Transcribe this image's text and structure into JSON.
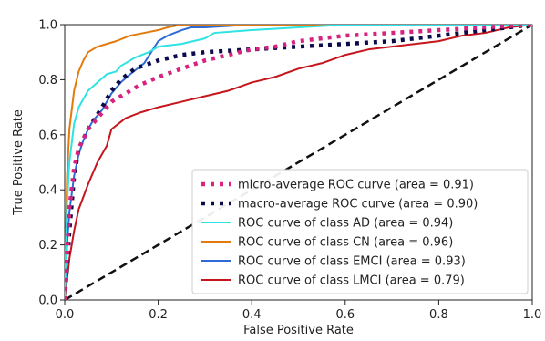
{
  "chart_data": {
    "type": "line",
    "xlabel": "False Positive Rate",
    "ylabel": "True Positive Rate",
    "xlim": [
      0.0,
      1.0
    ],
    "ylim": [
      0.0,
      1.0
    ],
    "xticks": [
      "0.0",
      "0.2",
      "0.4",
      "0.6",
      "0.8",
      "1.0"
    ],
    "yticks": [
      "0.0",
      "0.2",
      "0.4",
      "0.6",
      "0.8",
      "1.0"
    ],
    "grid": false,
    "legend_position": "lower-right",
    "series": [
      {
        "name": "micro-average ROC curve (area = 0.91)",
        "color": "#d6237f",
        "style": "dotted",
        "x": [
          0.0,
          0.01,
          0.02,
          0.03,
          0.05,
          0.08,
          0.1,
          0.13,
          0.16,
          0.2,
          0.25,
          0.3,
          0.35,
          0.4,
          0.45,
          0.5,
          0.55,
          0.6,
          0.7,
          0.8,
          0.9,
          1.0
        ],
        "y": [
          0.0,
          0.33,
          0.48,
          0.55,
          0.62,
          0.68,
          0.72,
          0.75,
          0.78,
          0.81,
          0.84,
          0.87,
          0.89,
          0.91,
          0.92,
          0.94,
          0.95,
          0.96,
          0.97,
          0.98,
          0.99,
          1.0
        ]
      },
      {
        "name": "macro-average ROC curve (area = 0.90)",
        "color": "#0b0b4a",
        "style": "dotted",
        "x": [
          0.0,
          0.01,
          0.02,
          0.03,
          0.05,
          0.08,
          0.1,
          0.12,
          0.15,
          0.2,
          0.25,
          0.3,
          0.4,
          0.5,
          0.6,
          0.7,
          0.8,
          0.9,
          1.0
        ],
        "y": [
          0.0,
          0.25,
          0.45,
          0.55,
          0.62,
          0.7,
          0.76,
          0.8,
          0.84,
          0.87,
          0.89,
          0.9,
          0.91,
          0.92,
          0.93,
          0.94,
          0.96,
          0.98,
          1.0
        ]
      },
      {
        "name": "ROC curve of class AD (area = 0.94)",
        "color": "#2de3e3",
        "style": "solid",
        "x": [
          0.0,
          0.005,
          0.01,
          0.02,
          0.03,
          0.04,
          0.05,
          0.07,
          0.09,
          0.11,
          0.12,
          0.15,
          0.18,
          0.2,
          0.25,
          0.3,
          0.32,
          0.4,
          0.5,
          0.6,
          0.8,
          1.0
        ],
        "y": [
          0.0,
          0.35,
          0.5,
          0.64,
          0.7,
          0.73,
          0.76,
          0.79,
          0.82,
          0.83,
          0.85,
          0.88,
          0.9,
          0.92,
          0.93,
          0.95,
          0.97,
          0.98,
          0.99,
          1.0,
          1.0,
          1.0
        ]
      },
      {
        "name": "ROC curve of class CN (area = 0.96)",
        "color": "#e37a0c",
        "style": "solid",
        "x": [
          0.0,
          0.005,
          0.01,
          0.02,
          0.03,
          0.04,
          0.05,
          0.07,
          0.09,
          0.11,
          0.14,
          0.17,
          0.2,
          0.22,
          0.25,
          0.3,
          0.4,
          0.6,
          1.0
        ],
        "y": [
          0.0,
          0.45,
          0.62,
          0.76,
          0.83,
          0.87,
          0.9,
          0.92,
          0.93,
          0.94,
          0.96,
          0.97,
          0.98,
          0.99,
          1.0,
          1.0,
          1.0,
          1.0,
          1.0
        ]
      },
      {
        "name": "ROC curve of class EMCI (area = 0.93)",
        "color": "#2e6bd6",
        "style": "solid",
        "x": [
          0.0,
          0.005,
          0.01,
          0.02,
          0.03,
          0.04,
          0.05,
          0.06,
          0.08,
          0.1,
          0.12,
          0.14,
          0.17,
          0.2,
          0.22,
          0.25,
          0.27,
          0.3,
          0.4,
          0.6,
          1.0
        ],
        "y": [
          0.0,
          0.2,
          0.32,
          0.45,
          0.53,
          0.58,
          0.62,
          0.65,
          0.69,
          0.75,
          0.79,
          0.82,
          0.86,
          0.94,
          0.96,
          0.98,
          0.99,
          0.99,
          1.0,
          1.0,
          1.0
        ]
      },
      {
        "name": "ROC curve of class LMCI (area = 0.79)",
        "color": "#c4161c",
        "style": "solid",
        "x": [
          0.0,
          0.01,
          0.02,
          0.03,
          0.05,
          0.07,
          0.09,
          0.1,
          0.13,
          0.16,
          0.2,
          0.25,
          0.3,
          0.35,
          0.4,
          0.45,
          0.5,
          0.55,
          0.6,
          0.65,
          0.7,
          0.75,
          0.8,
          0.85,
          0.9,
          0.95,
          1.0
        ],
        "y": [
          0.0,
          0.15,
          0.25,
          0.33,
          0.42,
          0.5,
          0.56,
          0.62,
          0.66,
          0.68,
          0.7,
          0.72,
          0.74,
          0.76,
          0.79,
          0.81,
          0.84,
          0.86,
          0.89,
          0.91,
          0.92,
          0.93,
          0.94,
          0.96,
          0.97,
          0.99,
          1.0
        ]
      },
      {
        "name": "",
        "color": "#111111",
        "style": "dashed",
        "x": [
          0.0,
          1.0
        ],
        "y": [
          0.0,
          1.0
        ]
      }
    ]
  }
}
